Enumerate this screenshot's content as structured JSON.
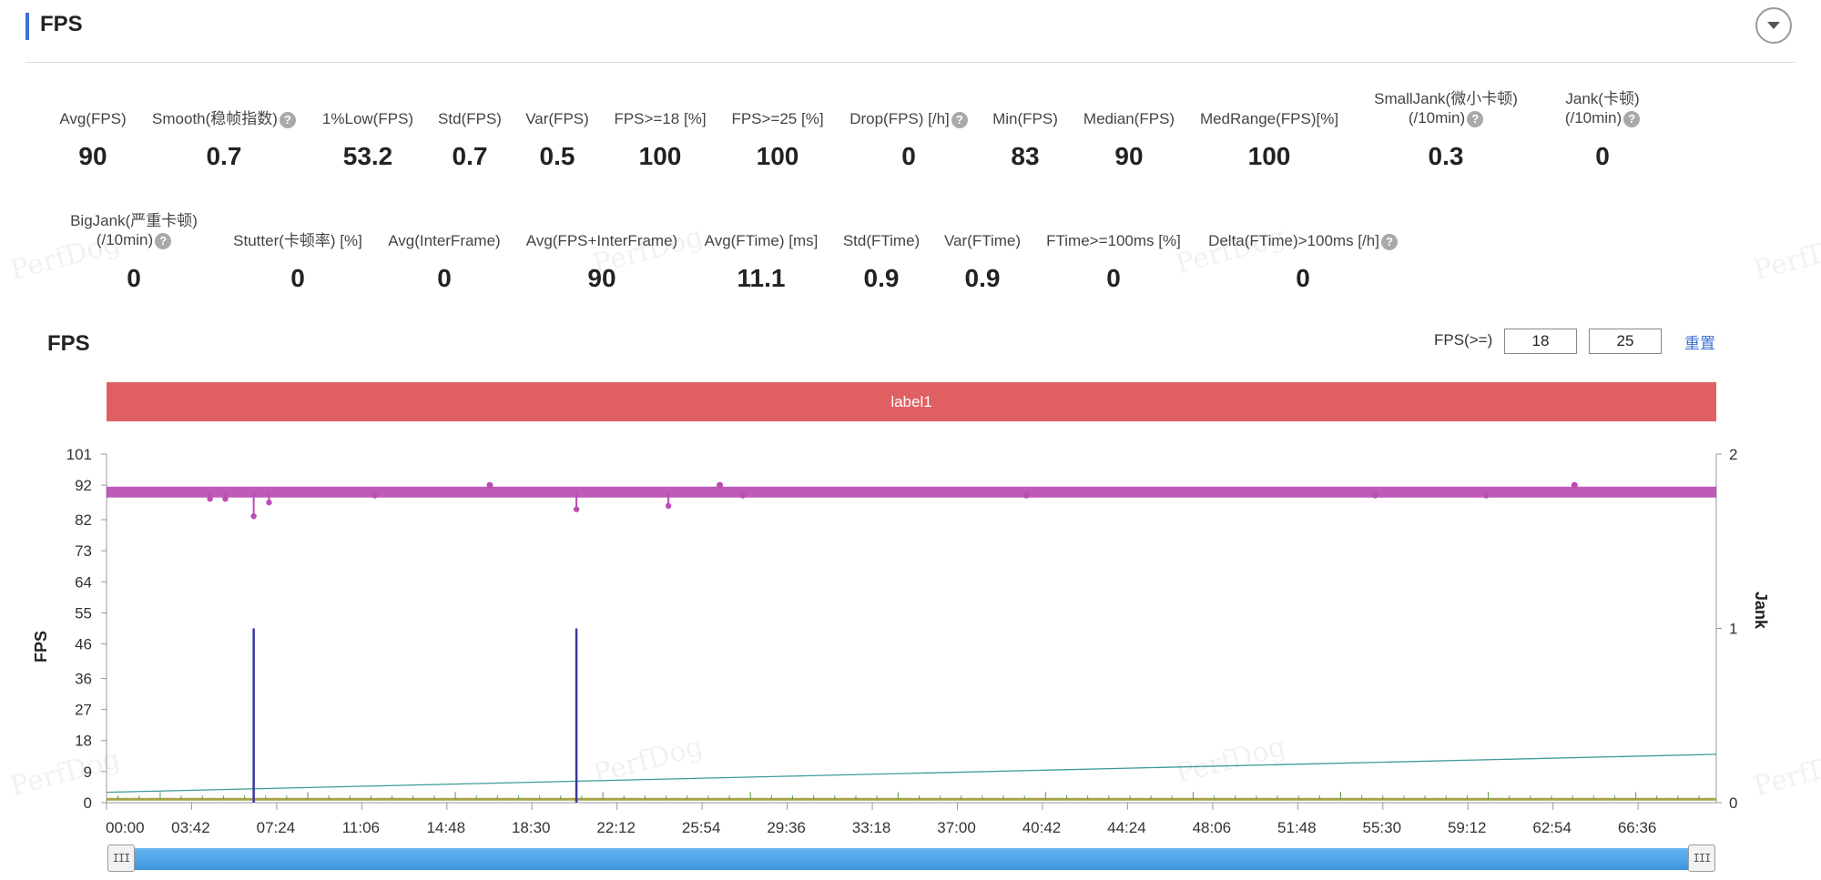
{
  "header": {
    "title": "FPS",
    "toggle_icon": "chevron-down-icon"
  },
  "metrics_row1": [
    {
      "label": "Avg(FPS)",
      "value": "90"
    },
    {
      "label": "Smooth(稳帧指数)",
      "value": "0.7",
      "help": true
    },
    {
      "label": "1%Low(FPS)",
      "value": "53.2"
    },
    {
      "label": "Std(FPS)",
      "value": "0.7"
    },
    {
      "label": "Var(FPS)",
      "value": "0.5"
    },
    {
      "label": "FPS>=18 [%]",
      "value": "100"
    },
    {
      "label": "FPS>=25 [%]",
      "value": "100"
    },
    {
      "label": "Drop(FPS) [/h]",
      "value": "0",
      "help": true
    },
    {
      "label": "Min(FPS)",
      "value": "83"
    },
    {
      "label": "Median(FPS)",
      "value": "90"
    },
    {
      "label": "MedRange(FPS)[%]",
      "value": "100"
    },
    {
      "label": "SmallJank(微小卡顿)",
      "label2": "(/10min)",
      "value": "0.3",
      "help": true
    },
    {
      "label": "Jank(卡顿)",
      "label2": "(/10min)",
      "value": "0",
      "help": true
    }
  ],
  "metrics_row2": [
    {
      "label": "BigJank(严重卡顿)",
      "label2": "(/10min)",
      "value": "0",
      "help": true
    },
    {
      "label": "Stutter(卡顿率) [%]",
      "value": "0"
    },
    {
      "label": "Avg(InterFrame)",
      "value": "0"
    },
    {
      "label": "Avg(FPS+InterFrame)",
      "value": "90"
    },
    {
      "label": "Avg(FTime) [ms]",
      "value": "11.1"
    },
    {
      "label": "Std(FTime)",
      "value": "0.9"
    },
    {
      "label": "Var(FTime)",
      "value": "0.9"
    },
    {
      "label": "FTime>=100ms [%]",
      "value": "0"
    },
    {
      "label": "Delta(FTime)>100ms [/h]",
      "value": "0",
      "help": true
    }
  ],
  "chart_section": {
    "title": "FPS",
    "fps_threshold_label": "FPS(>=)",
    "fps_threshold_1": "18",
    "fps_threshold_2": "25",
    "reset_label": "重置",
    "label_band": "label1",
    "watermark": "PerfDog"
  },
  "chart_data": {
    "type": "line",
    "x_ticks": [
      "00:00",
      "03:42",
      "07:24",
      "11:06",
      "14:48",
      "18:30",
      "22:12",
      "25:54",
      "29:36",
      "33:18",
      "37:00",
      "40:42",
      "44:24",
      "48:06",
      "51:48",
      "55:30",
      "59:12",
      "62:54",
      "66:36"
    ],
    "x_range": [
      "00:00",
      "70:00"
    ],
    "y_left": {
      "label": "FPS",
      "ticks": [
        0,
        9,
        18,
        27,
        36,
        46,
        55,
        64,
        73,
        82,
        92,
        101
      ],
      "range": [
        0,
        101
      ]
    },
    "y_right": {
      "label": "Jank",
      "ticks": [
        0,
        1,
        2
      ],
      "range": [
        0,
        2
      ]
    },
    "series": [
      {
        "color": "#b94db3",
        "baseline": 90,
        "dips": [
          {
            "t": 310,
            "v": 88
          },
          {
            "t": 384,
            "v": 83
          },
          {
            "t": 424,
            "v": 87
          },
          {
            "t": 1226,
            "v": 85
          },
          {
            "t": 1466,
            "v": 86
          },
          {
            "t": 270,
            "v": 88
          },
          {
            "t": 700,
            "v": 89
          },
          {
            "t": 1660,
            "v": 89
          },
          {
            "t": 2400,
            "v": 89
          },
          {
            "t": 3310,
            "v": 89
          },
          {
            "t": 3600,
            "v": 89
          }
        ],
        "peaks": [
          {
            "t": 1000,
            "v": 92
          },
          {
            "t": 1600,
            "v": 92
          },
          {
            "t": 3830,
            "v": 92
          }
        ]
      },
      {
        "axis": "right",
        "color": "#3a3aa0",
        "spikes": [
          {
            "t": 384,
            "v": 1
          },
          {
            "t": 1226,
            "v": 1
          }
        ]
      },
      {
        "color": "#3d9a96",
        "values": [
          {
            "t": 0,
            "v": 3
          },
          {
            "t": 4200,
            "v": 14
          }
        ]
      },
      {
        "color": "#a9a348",
        "baseline": 1
      }
    ]
  },
  "slider": {
    "handle_icon": "grip-icon"
  }
}
